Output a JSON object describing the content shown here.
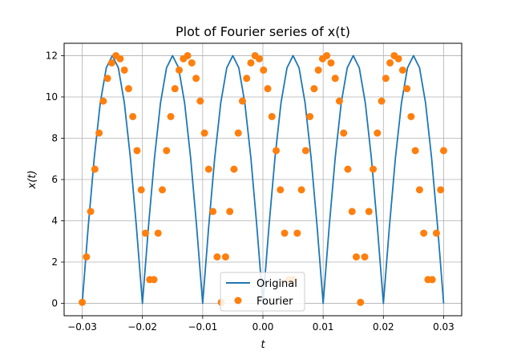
{
  "chart_data": {
    "type": "line",
    "title": "Plot of Fourier series of x(t)",
    "xlabel": "t",
    "ylabel": "x(t)",
    "xlim": [
      -0.033,
      0.033
    ],
    "ylim": [
      -0.6,
      12.6
    ],
    "xticks": [
      -0.03,
      -0.02,
      -0.01,
      0.0,
      0.01,
      0.02,
      0.03
    ],
    "xtick_labels": [
      "−0.03",
      "−0.02",
      "−0.01",
      "0.00",
      "0.01",
      "0.02",
      "0.03"
    ],
    "yticks": [
      0,
      2,
      4,
      6,
      8,
      10,
      12
    ],
    "ytick_labels": [
      "0",
      "2",
      "4",
      "6",
      "8",
      "10",
      "12"
    ],
    "grid": true,
    "legend_position": "bottom-center",
    "colors": {
      "original": "#1f77b4",
      "fourier": "#ff7f0e"
    },
    "series": [
      {
        "name": "Original",
        "style": "line",
        "x": [
          -0.03,
          -0.029,
          -0.028,
          -0.027,
          -0.026,
          -0.025,
          -0.024,
          -0.023,
          -0.022,
          -0.021,
          -0.02,
          -0.019,
          -0.018,
          -0.017,
          -0.016,
          -0.015,
          -0.014,
          -0.013,
          -0.012,
          -0.011,
          -0.01,
          -0.009,
          -0.008,
          -0.007,
          -0.006,
          -0.005,
          -0.004,
          -0.003,
          -0.002,
          -0.001,
          0.0,
          0.001,
          0.002,
          0.003,
          0.004,
          0.005,
          0.006,
          0.007,
          0.008,
          0.009,
          0.01,
          0.011,
          0.012,
          0.013,
          0.014,
          0.015,
          0.016,
          0.017,
          0.018,
          0.019,
          0.02,
          0.021,
          0.022,
          0.023,
          0.024,
          0.025,
          0.026,
          0.027,
          0.028,
          0.029,
          0.03
        ],
        "y": [
          0.0,
          3.71,
          7.05,
          9.71,
          11.41,
          12.0,
          11.41,
          9.71,
          7.05,
          3.71,
          0.0,
          3.71,
          7.05,
          9.71,
          11.41,
          12.0,
          11.41,
          9.71,
          7.05,
          3.71,
          0.0,
          3.71,
          7.05,
          9.71,
          11.41,
          12.0,
          11.41,
          9.71,
          7.05,
          3.71,
          0.0,
          3.71,
          7.05,
          9.71,
          11.41,
          12.0,
          11.41,
          9.71,
          7.05,
          3.71,
          0.0,
          3.71,
          7.05,
          9.71,
          11.41,
          12.0,
          11.41,
          9.71,
          7.05,
          3.71,
          0.0,
          3.71,
          7.05,
          9.71,
          11.41,
          12.0,
          11.41,
          9.71,
          7.05,
          3.71,
          0.0
        ]
      },
      {
        "name": "Fourier",
        "style": "markers",
        "x": [
          -0.03,
          -0.0293,
          -0.0286,
          -0.0279,
          -0.0272,
          -0.0265,
          -0.0258,
          -0.0251,
          -0.0244,
          -0.0237,
          -0.023,
          -0.0223,
          -0.0216,
          -0.0209,
          -0.0202,
          -0.0195,
          -0.0188,
          -0.0181,
          -0.0174,
          -0.0167,
          -0.016,
          -0.0153,
          -0.0146,
          -0.0139,
          -0.0132,
          -0.0125,
          -0.0118,
          -0.0111,
          -0.0104,
          -0.0097,
          -0.009,
          -0.0083,
          -0.0076,
          -0.0069,
          -0.0062,
          -0.0055,
          -0.0048,
          -0.0041,
          -0.0034,
          -0.0027,
          -0.002,
          -0.0013,
          -0.0006,
          0.0001,
          0.0008,
          0.0015,
          0.0022,
          0.0029,
          0.0036,
          0.0043,
          0.005,
          0.0057,
          0.0064,
          0.0071,
          0.0078,
          0.0085,
          0.0092,
          0.0099,
          0.0106,
          0.0113,
          0.012,
          0.0127,
          0.0134,
          0.0141,
          0.0148,
          0.0155,
          0.0162,
          0.0169,
          0.0176,
          0.0183,
          0.019,
          0.0197,
          0.0204,
          0.0211,
          0.0218,
          0.0225,
          0.0232,
          0.0239,
          0.0246,
          0.0253,
          0.026,
          0.0267,
          0.0274,
          0.0281,
          0.0288,
          0.0295,
          0.03
        ],
        "y": [
          0.05,
          2.25,
          4.45,
          6.5,
          8.25,
          9.8,
          10.9,
          11.65,
          12.0,
          11.85,
          11.3,
          10.4,
          9.05,
          7.4,
          5.5,
          3.4,
          1.15,
          1.15,
          3.4,
          5.5,
          7.4,
          9.05,
          10.4,
          11.3,
          11.85,
          12.0,
          11.65,
          10.9,
          9.8,
          8.25,
          6.5,
          4.45,
          2.25,
          0.05,
          2.25,
          4.45,
          6.5,
          8.25,
          9.8,
          10.9,
          11.65,
          12.0,
          11.85,
          11.3,
          10.4,
          9.05,
          7.4,
          5.5,
          3.4,
          1.15,
          1.15,
          3.4,
          5.5,
          7.4,
          9.05,
          10.4,
          11.3,
          11.85,
          12.0,
          11.65,
          10.9,
          9.8,
          8.25,
          6.5,
          4.45,
          2.25,
          0.05,
          2.25,
          4.45,
          6.5,
          8.25,
          9.8,
          10.9,
          11.65,
          12.0,
          11.85,
          11.3,
          10.4,
          9.05,
          7.4,
          5.5,
          3.4,
          1.15,
          1.15,
          3.4,
          5.5,
          7.4
        ]
      }
    ]
  }
}
